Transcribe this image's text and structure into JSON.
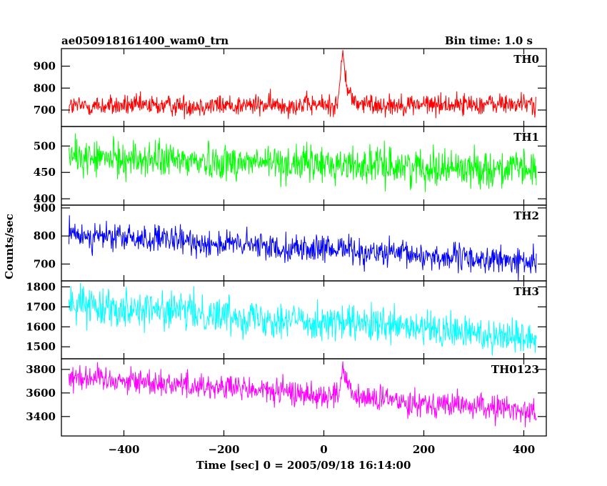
{
  "chart_data": {
    "type": "line",
    "title_left": "ae050918161400_wam0_trn",
    "title_right": "Bin time: 1.0 s",
    "xlabel": "Time [sec] 0 = 2005/09/18 16:14:00",
    "ylabel": "Counts/sec",
    "xlim": [
      -525,
      445
    ],
    "x_range": [
      -510,
      425
    ],
    "x_ticks": [
      -400,
      -200,
      0,
      200,
      400
    ],
    "x_tick_labels": [
      "−400",
      "−200",
      "0",
      "200",
      "400"
    ],
    "burst_time": 38,
    "panels": [
      {
        "name": "TH0",
        "color": "#ff0000",
        "ylim": [
          625,
          980
        ],
        "y_ticks": [
          700,
          800,
          900
        ],
        "trend": [
          718,
          728
        ],
        "noise": 24,
        "burst_peak": 230
      },
      {
        "name": "TH1",
        "color": "#00ff00",
        "ylim": [
          388,
          537
        ],
        "y_ticks": [
          400,
          450,
          500
        ],
        "trend": [
          478,
          455
        ],
        "noise": 17,
        "burst_peak": 0
      },
      {
        "name": "TH2",
        "color": "#0000ff",
        "ylim": [
          640,
          910
        ],
        "y_ticks": [
          700,
          800,
          900
        ],
        "trend": [
          805,
          705
        ],
        "noise": 24,
        "burst_peak": 35
      },
      {
        "name": "TH3",
        "color": "#00ffff",
        "ylim": [
          1440,
          1830
        ],
        "y_ticks": [
          1500,
          1600,
          1700,
          1800
        ],
        "trend": [
          1718,
          1545
        ],
        "noise": 45,
        "burst_peak": 0
      },
      {
        "name": "TH0123",
        "color": "#ff00ff",
        "ylim": [
          3235,
          3890
        ],
        "y_ticks": [
          3400,
          3600,
          3800
        ],
        "trend": [
          3745,
          3445
        ],
        "noise": 55,
        "burst_peak": 240
      }
    ]
  }
}
